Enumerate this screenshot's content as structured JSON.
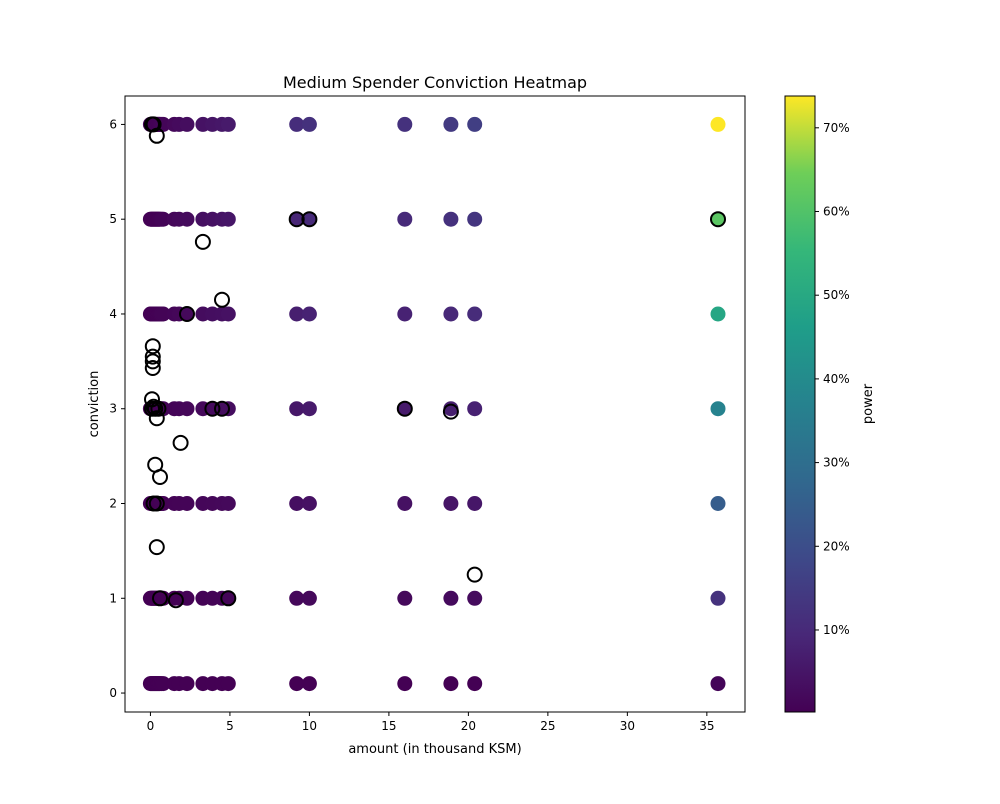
{
  "chart_data": {
    "type": "scatter",
    "title": "Medium Spender Conviction Heatmap",
    "xlabel": "amount (in thousand KSM)",
    "ylabel": "conviction",
    "xlim": [
      -1.6,
      37.4
    ],
    "ylim": [
      -0.2,
      6.3
    ],
    "xticks": [
      0,
      5,
      10,
      15,
      20,
      25,
      30,
      35
    ],
    "yticks": [
      0,
      1,
      2,
      3,
      4,
      5,
      6
    ],
    "colormap": "viridis",
    "colorbar": {
      "label": "power",
      "range": [
        0.2,
        73.8
      ],
      "ticks": [
        10,
        20,
        30,
        40,
        50,
        60,
        70
      ],
      "tick_labels": [
        "10%",
        "20%",
        "30%",
        "40%",
        "50%",
        "60%",
        "70%"
      ]
    },
    "grid": false,
    "row_y": [
      0.1,
      1,
      2,
      3,
      4,
      5,
      6
    ],
    "row_multipliers": [
      0.1,
      1,
      2,
      3,
      4,
      5,
      6
    ],
    "filled_x": [
      0.0,
      0.05,
      0.1,
      0.15,
      0.2,
      0.25,
      0.3,
      0.35,
      0.4,
      0.45,
      0.5,
      0.55,
      0.6,
      0.7,
      0.8,
      1.5,
      1.8,
      2.3,
      3.3,
      3.9,
      4.5,
      4.9,
      9.2,
      10.0,
      16.0,
      18.9,
      20.4,
      35.7
    ],
    "filled_power_per_unit": [
      0.1,
      0.1,
      0.1,
      0.1,
      0.1,
      0.1,
      0.1,
      0.1,
      0.1,
      0.1,
      0.1,
      0.1,
      0.1,
      0.2,
      0.2,
      0.3,
      0.4,
      0.5,
      0.7,
      0.8,
      0.9,
      1.0,
      1.8,
      2.0,
      2.0,
      2.4,
      2.6,
      12.3
    ],
    "highlighted_points": [
      {
        "x": 0.1,
        "y": 6.0
      },
      {
        "x": 0.2,
        "y": 6.0
      },
      {
        "x": 0.4,
        "y": 5.88
      },
      {
        "x": 9.2,
        "y": 5.0
      },
      {
        "x": 10.0,
        "y": 5.0
      },
      {
        "x": 35.7,
        "y": 5.0
      },
      {
        "x": 3.3,
        "y": 4.76
      },
      {
        "x": 4.5,
        "y": 4.15
      },
      {
        "x": 2.3,
        "y": 4.0
      },
      {
        "x": 0.15,
        "y": 3.66
      },
      {
        "x": 0.15,
        "y": 3.55
      },
      {
        "x": 0.15,
        "y": 3.5
      },
      {
        "x": 0.15,
        "y": 3.43
      },
      {
        "x": 0.1,
        "y": 3.1
      },
      {
        "x": 0.2,
        "y": 3.02
      },
      {
        "x": 0.1,
        "y": 3.0
      },
      {
        "x": 0.3,
        "y": 3.0
      },
      {
        "x": 0.5,
        "y": 3.0
      },
      {
        "x": 3.9,
        "y": 3.0
      },
      {
        "x": 4.5,
        "y": 3.0
      },
      {
        "x": 16.0,
        "y": 3.0
      },
      {
        "x": 18.9,
        "y": 2.97
      },
      {
        "x": 0.4,
        "y": 2.9
      },
      {
        "x": 1.9,
        "y": 2.64
      },
      {
        "x": 0.3,
        "y": 2.41
      },
      {
        "x": 0.6,
        "y": 2.28
      },
      {
        "x": 0.2,
        "y": 2.0
      },
      {
        "x": 0.4,
        "y": 2.0
      },
      {
        "x": 0.4,
        "y": 1.54
      },
      {
        "x": 20.4,
        "y": 1.25
      },
      {
        "x": 0.6,
        "y": 1.0
      },
      {
        "x": 1.6,
        "y": 0.98
      },
      {
        "x": 4.9,
        "y": 1.0
      }
    ]
  }
}
